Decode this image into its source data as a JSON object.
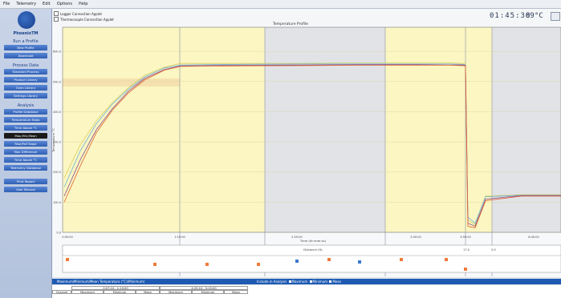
{
  "menubar": {
    "items": [
      "File",
      "Telemetry",
      "Edit",
      "Options",
      "Help"
    ]
  },
  "sidebar": {
    "logo_text": "PhoenixTM",
    "sections": [
      {
        "title": "Run a Profile",
        "buttons": [
          "New Profile",
          "Download"
        ]
      },
      {
        "title": "Process Data",
        "buttons": [
          "Standard Process",
          "Product Library",
          "Oven Library",
          "Settings Library"
        ]
      },
      {
        "title": "Analysis",
        "buttons": [
          "Profile Database",
          "Temperature Stats",
          "Time Above °C",
          "Max,Min,Mean",
          "Rise/Fall Slope",
          "Max Difference",
          "Time Above °C",
          "Telemetry Database"
        ]
      },
      {
        "title": "",
        "buttons": [
          "Print Report",
          "User Manual"
        ]
      }
    ],
    "active_button": "Max,Min,Mean"
  },
  "topbar": {
    "legend": [
      "Logger Connection Applet",
      "Thermocouple Connection Applet"
    ],
    "clock": "01:45:30",
    "clock_temp": "89°C"
  },
  "chart_data": {
    "type": "line",
    "title": "Temperature Profile",
    "xlabel": "Time (hh:mm:ss)",
    "ylabel": "Temperature °C",
    "x_ticks": [
      "0:00:00",
      "1:10:00",
      "2:20:00",
      "3:40:00",
      "4:50:00",
      "6:40:00"
    ],
    "y_ticks": [
      "0.0",
      "100.0",
      "200.0",
      "300.0",
      "400.0",
      "500.0",
      "600.0"
    ],
    "ylim": [
      0,
      680
    ],
    "grid": true,
    "zones_label": "Distance (ft)",
    "zone_marker_label": "17.0",
    "zone_marker_label_2": "0.0",
    "series": [
      {
        "color": "#d9d060",
        "values": [
          180,
          290,
          370,
          430,
          480,
          520,
          548,
          560,
          560,
          560,
          562,
          562,
          562,
          560,
          560,
          40,
          25,
          120,
          125,
          125
        ]
      },
      {
        "color": "#6ab0d8",
        "values": [
          150,
          270,
          360,
          425,
          475,
          515,
          545,
          555,
          557,
          558,
          558,
          558,
          558,
          557,
          556,
          50,
          30,
          118,
          123,
          123
        ]
      },
      {
        "color": "#8a4f8a",
        "values": [
          120,
          240,
          340,
          410,
          468,
          510,
          540,
          552,
          554,
          555,
          556,
          556,
          555,
          555,
          554,
          30,
          20,
          110,
          122,
          122
        ]
      },
      {
        "color": "#e06030",
        "values": [
          100,
          220,
          330,
          405,
          462,
          505,
          538,
          550,
          552,
          553,
          554,
          554,
          554,
          553,
          552,
          20,
          15,
          105,
          120,
          120
        ]
      }
    ]
  },
  "bottom": {
    "title": "Maximum/Minimum/Mean Temperature (°C)(Minimum)",
    "filter_label": "Include in Analysis",
    "filter_items": [
      "Maximum",
      "Minimum",
      "Mean"
    ],
    "col_group_1": "0:07:10 - 1:10:00",
    "col_group_2": "4:25:10 - 5:15:00",
    "columns": [
      "Channel",
      "Maximum",
      "Minimum",
      "Mean",
      "Maximum",
      "Minimum",
      "Mean"
    ]
  },
  "colors": {
    "zone_yellow": "#fbf6c2",
    "zone_gray": "#e2e3e6",
    "accent": "#1e5ab2"
  }
}
